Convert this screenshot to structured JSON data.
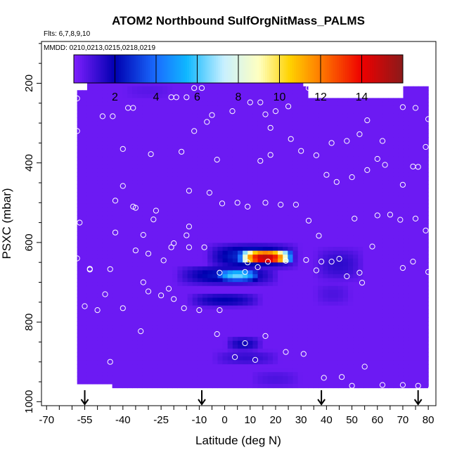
{
  "chart_data": {
    "type": "heatmap",
    "title": "ATOM2 Northbound SulfOrgNitMass_PALMS",
    "notes": {
      "flights": "Flts: 6,7,8,9,10",
      "dates": "MMDD: 0210,0213,0215,0218,0219"
    },
    "xlabel": "Latitude (deg N)",
    "ylabel": "PSXC (mbar)",
    "xlim": [
      -72,
      83
    ],
    "ylim": [
      1010,
      95
    ],
    "x_ticks": [
      -70,
      -55,
      -40,
      -25,
      -10,
      0,
      10,
      20,
      30,
      40,
      50,
      60,
      70,
      80
    ],
    "x_tick_labels": [
      "-70",
      "-55",
      "-40",
      "-25",
      "-10",
      "0",
      "10",
      "20",
      "30",
      "40",
      "50",
      "60",
      "70",
      "80"
    ],
    "y_ticks": [
      200,
      400,
      600,
      800,
      1000
    ],
    "y_tick_labels": [
      "200",
      "400",
      "600",
      "800",
      "1000"
    ],
    "colorbar": {
      "range": [
        0,
        16
      ],
      "ticks": [
        2,
        4,
        6,
        8,
        10,
        12,
        14
      ],
      "tick_labels": [
        "2",
        "4",
        "6",
        "8",
        "10",
        "12",
        "14"
      ],
      "colors": [
        "#7f1fff",
        "#0000b0",
        "#1a6cff",
        "#10b8ff",
        "#c8f0ff",
        "#ffffc0",
        "#ffd200",
        "#ff7a00",
        "#ee0000",
        "#8b1a1a"
      ],
      "stops": [
        0,
        2,
        4,
        5.5,
        7.3,
        9,
        10.5,
        12,
        14,
        16
      ]
    },
    "background_value": 0.3,
    "coverage_x": [
      -58,
      80
    ],
    "coverage_y": [
      178,
      965
    ],
    "features": [
      {
        "x": [
          5,
          27
        ],
        "y": [
          620,
          655
        ],
        "peak": 15,
        "shape": "core"
      },
      {
        "x": [
          -8,
          30
        ],
        "y": [
          600,
          670
        ],
        "peak": 3,
        "shape": "halo"
      },
      {
        "x": [
          -5,
          15
        ],
        "y": [
          665,
          700
        ],
        "peak": 6.5,
        "shape": "blob"
      },
      {
        "x": [
          -20,
          22
        ],
        "y": [
          655,
          710
        ],
        "peak": 2.5,
        "shape": "halo"
      },
      {
        "x": [
          -15,
          15
        ],
        "y": [
          725,
          765
        ],
        "peak": 2.0,
        "shape": "blob"
      },
      {
        "x": [
          0,
          15
        ],
        "y": [
          835,
          875
        ],
        "peak": 1.8,
        "shape": "blob"
      },
      {
        "x": [
          -5,
          22
        ],
        "y": [
          870,
          910
        ],
        "peak": 1.2,
        "shape": "blob"
      },
      {
        "x": [
          35,
          55
        ],
        "y": [
          610,
          700
        ],
        "peak": 1.3,
        "shape": "blob"
      },
      {
        "x": [
          35,
          50
        ],
        "y": [
          700,
          760
        ],
        "peak": 0.8,
        "shape": "blob"
      },
      {
        "x": [
          10,
          30
        ],
        "y": [
          920,
          965
        ],
        "peak": 0.8,
        "shape": "blob"
      },
      {
        "x": [
          -40,
          -20
        ],
        "y": [
          200,
          240
        ],
        "peak": 0.6,
        "shape": "blob"
      }
    ],
    "sample_points": [
      [
        -57,
        188
      ],
      [
        -63,
        213
      ],
      [
        -65,
        228
      ],
      [
        -66,
        238
      ],
      [
        -58,
        320
      ],
      [
        -58,
        238
      ],
      [
        -68,
        400
      ],
      [
        -48,
        283
      ],
      [
        -44,
        283
      ],
      [
        -38,
        262
      ],
      [
        -36,
        262
      ],
      [
        -40,
        365
      ],
      [
        -43,
        495
      ],
      [
        -40,
        458
      ],
      [
        -29,
        378
      ],
      [
        -27,
        520
      ],
      [
        -21,
        235
      ],
      [
        -19,
        235
      ],
      [
        -15,
        235
      ],
      [
        -12,
        320
      ],
      [
        -17,
        372
      ],
      [
        -14,
        470
      ],
      [
        -12,
        212
      ],
      [
        -9,
        212
      ],
      [
        -7,
        297
      ],
      [
        -5,
        280
      ],
      [
        3,
        270
      ],
      [
        10,
        248
      ],
      [
        14,
        248
      ],
      [
        16,
        278
      ],
      [
        18,
        312
      ],
      [
        25,
        258
      ],
      [
        20,
        270
      ],
      [
        33,
        212
      ],
      [
        40,
        210
      ],
      [
        48,
        210
      ],
      [
        60,
        210
      ],
      [
        70,
        260
      ],
      [
        75,
        262
      ],
      [
        80,
        290
      ],
      [
        56,
        293
      ],
      [
        53,
        328
      ],
      [
        42,
        350
      ],
      [
        48,
        345
      ],
      [
        62,
        345
      ],
      [
        70,
        455
      ],
      [
        74,
        409
      ],
      [
        79,
        360
      ],
      [
        76,
        410
      ],
      [
        82,
        420
      ],
      [
        60,
        390
      ],
      [
        63,
        405
      ],
      [
        56,
        418
      ],
      [
        50,
        436
      ],
      [
        44,
        448
      ],
      [
        40,
        430
      ],
      [
        36,
        381
      ],
      [
        30,
        370
      ],
      [
        26,
        340
      ],
      [
        18,
        380
      ],
      [
        14,
        395
      ],
      [
        -3,
        392
      ],
      [
        -6,
        475
      ],
      [
        -1,
        502
      ],
      [
        5,
        500
      ],
      [
        9,
        510
      ],
      [
        16,
        500
      ],
      [
        22,
        505
      ],
      [
        28,
        505
      ],
      [
        33,
        545
      ],
      [
        37,
        583
      ],
      [
        51,
        540
      ],
      [
        60,
        532
      ],
      [
        65,
        530
      ],
      [
        69,
        543
      ],
      [
        75,
        540
      ],
      [
        79,
        570
      ],
      [
        58,
        610
      ],
      [
        74,
        648
      ],
      [
        80,
        674
      ],
      [
        70,
        664
      ],
      [
        53,
        676
      ],
      [
        54,
        701
      ],
      [
        48,
        685
      ],
      [
        45,
        641
      ],
      [
        42,
        648
      ],
      [
        38,
        648
      ],
      [
        36,
        670
      ],
      [
        32,
        644
      ],
      [
        24,
        646
      ],
      [
        17,
        648
      ],
      [
        9,
        650
      ],
      [
        13,
        662
      ],
      [
        8,
        674
      ],
      [
        -2,
        676
      ],
      [
        -8,
        612
      ],
      [
        -14,
        612
      ],
      [
        -21,
        612
      ],
      [
        -24,
        645
      ],
      [
        -30,
        628
      ],
      [
        -45,
        667
      ],
      [
        -47,
        730
      ],
      [
        -53,
        666
      ],
      [
        -58,
        640
      ],
      [
        -60,
        688
      ],
      [
        -67,
        675
      ],
      [
        -61,
        548
      ],
      [
        -57,
        550
      ],
      [
        -53,
        668
      ],
      [
        -36,
        510
      ],
      [
        -35,
        513
      ],
      [
        -28,
        542
      ],
      [
        -32,
        581
      ],
      [
        -35,
        620
      ],
      [
        -32,
        700
      ],
      [
        -30,
        723
      ],
      [
        -25,
        733
      ],
      [
        -22,
        716
      ],
      [
        -20,
        742
      ],
      [
        -16,
        765
      ],
      [
        -10,
        770
      ],
      [
        -2,
        770
      ],
      [
        -3,
        830
      ],
      [
        4,
        888
      ],
      [
        8,
        853
      ],
      [
        12,
        895
      ],
      [
        16,
        835
      ],
      [
        24,
        875
      ],
      [
        31,
        880
      ],
      [
        39,
        940
      ],
      [
        46,
        938
      ],
      [
        50,
        960
      ],
      [
        55,
        912
      ],
      [
        62,
        958
      ],
      [
        70,
        958
      ],
      [
        76,
        960
      ],
      [
        81,
        967
      ],
      [
        -50,
        985
      ],
      [
        -46,
        993
      ],
      [
        -42,
        1000
      ],
      [
        -28,
        1000
      ],
      [
        -20,
        996
      ],
      [
        -12,
        993
      ],
      [
        -6,
        1000
      ],
      [
        2,
        1000
      ],
      [
        5,
        1000
      ],
      [
        14,
        1000
      ],
      [
        22,
        998
      ],
      [
        28,
        1000
      ],
      [
        34,
        1000
      ],
      [
        40,
        1000
      ],
      [
        46,
        998
      ],
      [
        70,
        985
      ],
      [
        78,
        996
      ],
      [
        -68,
        1000
      ],
      [
        -60,
        994
      ],
      [
        -45,
        900
      ],
      [
        -33,
        823
      ],
      [
        -40,
        765
      ],
      [
        -50,
        770
      ],
      [
        -55,
        760
      ],
      [
        -62,
        780
      ],
      [
        -65,
        745
      ],
      [
        -68,
        760
      ],
      [
        -43,
        575
      ],
      [
        -14,
        560
      ],
      [
        -15,
        582
      ],
      [
        -20,
        602
      ]
    ],
    "arrows_x": [
      -55,
      -9,
      38,
      76
    ],
    "grid": false,
    "legend": "none"
  }
}
